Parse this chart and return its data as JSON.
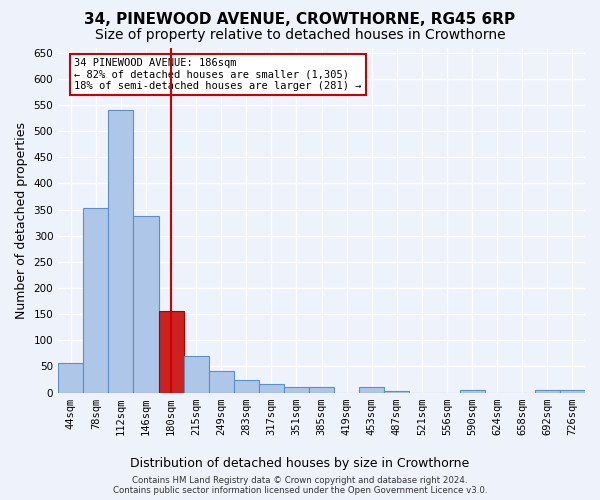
{
  "title": "34, PINEWOOD AVENUE, CROWTHORNE, RG45 6RP",
  "subtitle": "Size of property relative to detached houses in Crowthorne",
  "xlabel": "Distribution of detached houses by size in Crowthorne",
  "ylabel": "Number of detached properties",
  "footer_line1": "Contains HM Land Registry data © Crown copyright and database right 2024.",
  "footer_line2": "Contains public sector information licensed under the Open Government Licence v3.0.",
  "bin_labels": [
    "44sqm",
    "78sqm",
    "112sqm",
    "146sqm",
    "180sqm",
    "215sqm",
    "249sqm",
    "283sqm",
    "317sqm",
    "351sqm",
    "385sqm",
    "419sqm",
    "453sqm",
    "487sqm",
    "521sqm",
    "556sqm",
    "590sqm",
    "624sqm",
    "658sqm",
    "692sqm",
    "726sqm"
  ],
  "bar_values": [
    57,
    353,
    540,
    337,
    157,
    70,
    42,
    25,
    17,
    10,
    10,
    0,
    10,
    3,
    0,
    0,
    5,
    0,
    0,
    5,
    5
  ],
  "bar_color": "#aec6e8",
  "bar_edge_color": "#5b8fc9",
  "highlight_bar_index": 4,
  "highlight_bar_color": "#cc2222",
  "highlight_bar_edge_color": "#aa0000",
  "vline_color": "#cc0000",
  "annotation_line1": "34 PINEWOOD AVENUE: 186sqm",
  "annotation_line2": "← 82% of detached houses are smaller (1,305)",
  "annotation_line3": "18% of semi-detached houses are larger (281) →",
  "annotation_box_color": "#ffffff",
  "annotation_box_edge_color": "#cc0000",
  "ylim": [
    0,
    660
  ],
  "yticks": [
    0,
    50,
    100,
    150,
    200,
    250,
    300,
    350,
    400,
    450,
    500,
    550,
    600,
    650
  ],
  "background_color": "#eef2fb",
  "plot_bg_color": "#eef2fb",
  "grid_color": "#ffffff",
  "title_fontsize": 11,
  "subtitle_fontsize": 10,
  "tick_fontsize": 7.5,
  "label_fontsize": 9
}
